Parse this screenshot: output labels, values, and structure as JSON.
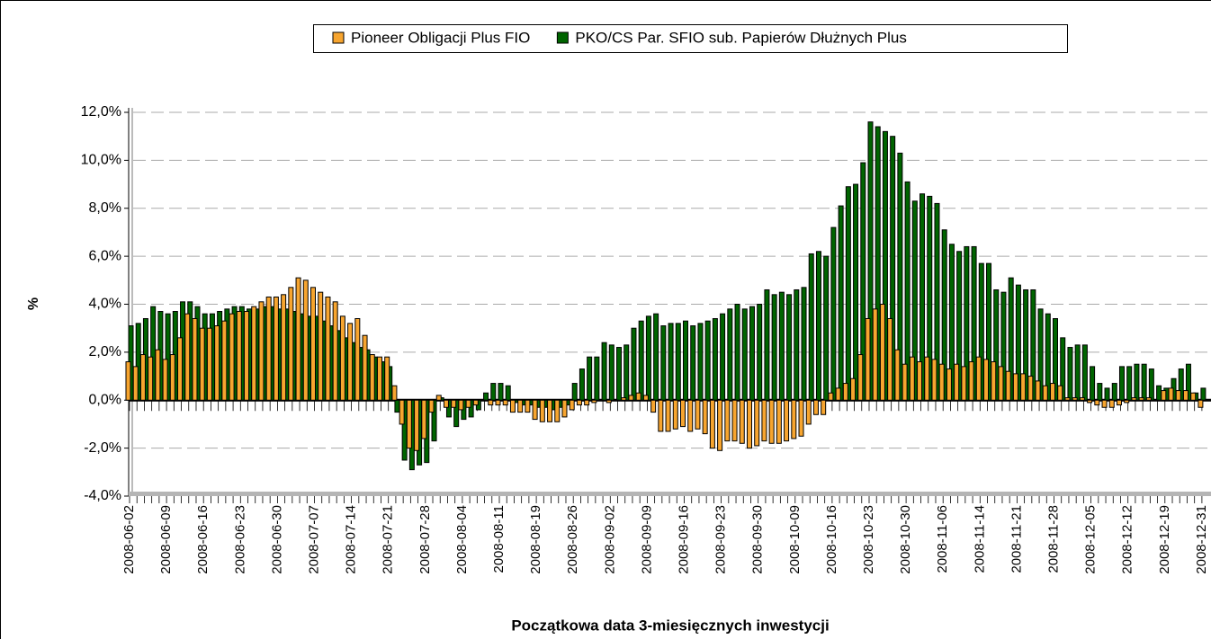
{
  "chart_data": {
    "type": "bar",
    "y_label": "%",
    "x_label": "Początkowa data 3-miesięcznych inwestycji",
    "ylim": [
      -4,
      12
    ],
    "yticks": [
      {
        "value": -4,
        "label": "-4,0%"
      },
      {
        "value": -2,
        "label": "-2,0%"
      },
      {
        "value": 0,
        "label": "0,0%"
      },
      {
        "value": 2,
        "label": "2,0%"
      },
      {
        "value": 4,
        "label": "4,0%"
      },
      {
        "value": 6,
        "label": "6,0%"
      },
      {
        "value": 8,
        "label": "8,0%"
      },
      {
        "value": 10,
        "label": "10,0%"
      },
      {
        "value": 12,
        "label": "12,0%"
      }
    ],
    "grid": true,
    "legend": "top",
    "categories": [
      "2008-06-02",
      null,
      null,
      null,
      null,
      "2008-06-09",
      null,
      null,
      null,
      null,
      "2008-06-16",
      null,
      null,
      null,
      null,
      "2008-06-23",
      null,
      null,
      null,
      null,
      "2008-06-30",
      null,
      null,
      null,
      null,
      "2008-07-07",
      null,
      null,
      null,
      null,
      "2008-07-14",
      null,
      null,
      null,
      null,
      "2008-07-21",
      null,
      null,
      null,
      null,
      "2008-07-28",
      null,
      null,
      null,
      null,
      "2008-08-04",
      null,
      null,
      null,
      null,
      "2008-08-11",
      null,
      null,
      null,
      null,
      "2008-08-19",
      null,
      null,
      null,
      null,
      "2008-08-26",
      null,
      null,
      null,
      null,
      "2008-09-02",
      null,
      null,
      null,
      null,
      "2008-09-09",
      null,
      null,
      null,
      null,
      "2008-09-16",
      null,
      null,
      null,
      null,
      "2008-09-23",
      null,
      null,
      null,
      null,
      "2008-09-30",
      null,
      null,
      null,
      null,
      "2008-10-09",
      null,
      null,
      null,
      null,
      "2008-10-16",
      null,
      null,
      null,
      null,
      "2008-10-23",
      null,
      null,
      null,
      null,
      "2008-10-30",
      null,
      null,
      null,
      null,
      "2008-11-06",
      null,
      null,
      null,
      null,
      "2008-11-14",
      null,
      null,
      null,
      null,
      "2008-11-21",
      null,
      null,
      null,
      null,
      "2008-11-28",
      null,
      null,
      null,
      null,
      "2008-12-05",
      null,
      null,
      null,
      null,
      "2008-12-12",
      null,
      null,
      null,
      null,
      "2008-12-19",
      null,
      null,
      null,
      null,
      "2008-12-31"
    ],
    "series": [
      {
        "name": "Pioneer Obligacji Plus FIO",
        "color": "#f7a52f",
        "values": [
          1.6,
          1.4,
          1.9,
          1.8,
          2.1,
          1.7,
          1.9,
          2.6,
          3.6,
          3.4,
          3.0,
          3.0,
          3.1,
          3.3,
          3.6,
          3.7,
          3.7,
          3.9,
          4.1,
          4.3,
          4.3,
          4.4,
          4.7,
          5.1,
          5.0,
          4.7,
          4.5,
          4.3,
          4.1,
          3.5,
          3.2,
          3.4,
          2.7,
          1.9,
          1.8,
          1.8,
          0.6,
          -1.0,
          -2.0,
          -2.1,
          -1.6,
          -0.5,
          0.2,
          -0.3,
          -0.3,
          -0.4,
          -0.3,
          -0.2,
          0.0,
          -0.2,
          -0.2,
          -0.2,
          -0.5,
          -0.5,
          -0.5,
          -0.8,
          -0.9,
          -0.9,
          -0.9,
          -0.7,
          -0.4,
          -0.2,
          -0.2,
          -0.1,
          0.0,
          -0.1,
          0.0,
          0.1,
          0.2,
          0.3,
          0.2,
          -0.5,
          -1.3,
          -1.3,
          -1.2,
          -1.1,
          -1.3,
          -1.2,
          -1.4,
          -2.0,
          -2.1,
          -1.7,
          -1.7,
          -1.8,
          -2.0,
          -1.9,
          -1.7,
          -1.8,
          -1.8,
          -1.7,
          -1.6,
          -1.5,
          -1.0,
          -0.6,
          -0.6,
          0.3,
          0.5,
          0.7,
          0.9,
          1.9,
          3.4,
          3.8,
          4.0,
          3.4,
          2.1,
          1.5,
          1.8,
          1.6,
          1.8,
          1.7,
          1.5,
          1.3,
          1.5,
          1.4,
          1.6,
          1.8,
          1.7,
          1.6,
          1.4,
          1.2,
          1.1,
          1.1,
          1.0,
          0.8,
          0.6,
          0.7,
          0.6,
          0.1,
          0.1,
          0.1,
          -0.1,
          -0.2,
          -0.3,
          -0.3,
          -0.2,
          -0.1,
          0.1,
          0.1,
          0.1,
          0.0,
          0.4,
          0.5,
          0.4,
          0.4,
          0.3,
          -0.3
        ]
      },
      {
        "name": "PKO/CS Par. SFIO sub. Papierów Dłużnych Plus",
        "color": "#006400",
        "values": [
          3.1,
          3.2,
          3.4,
          3.9,
          3.7,
          3.6,
          3.7,
          4.1,
          4.1,
          3.9,
          3.6,
          3.6,
          3.7,
          3.8,
          3.9,
          3.9,
          3.8,
          3.8,
          3.9,
          3.9,
          3.8,
          3.8,
          3.7,
          3.6,
          3.5,
          3.5,
          3.3,
          3.1,
          2.9,
          2.6,
          2.4,
          2.2,
          2.1,
          1.8,
          1.6,
          1.4,
          -0.5,
          -2.5,
          -2.9,
          -2.7,
          -2.6,
          -1.7,
          0.1,
          -0.7,
          -1.1,
          -0.8,
          -0.7,
          -0.4,
          0.3,
          0.7,
          0.7,
          0.6,
          -0.1,
          -0.2,
          -0.2,
          -0.3,
          -0.3,
          -0.4,
          -0.3,
          -0.2,
          0.7,
          1.3,
          1.8,
          1.8,
          2.4,
          2.3,
          2.2,
          2.3,
          3.0,
          3.3,
          3.5,
          3.6,
          3.1,
          3.2,
          3.2,
          3.3,
          3.1,
          3.2,
          3.3,
          3.4,
          3.6,
          3.8,
          4.0,
          3.8,
          3.9,
          4.0,
          4.6,
          4.4,
          4.5,
          4.4,
          4.6,
          4.7,
          6.1,
          6.2,
          6.0,
          7.2,
          8.1,
          8.9,
          9.0,
          9.9,
          11.6,
          11.4,
          11.2,
          11.0,
          10.3,
          9.1,
          8.3,
          8.6,
          8.5,
          8.2,
          7.1,
          6.5,
          6.2,
          6.4,
          6.4,
          5.7,
          5.7,
          4.6,
          4.5,
          5.1,
          4.8,
          4.6,
          4.6,
          3.8,
          3.6,
          3.4,
          2.6,
          2.2,
          2.3,
          2.3,
          1.4,
          0.7,
          0.5,
          0.7,
          1.4,
          1.4,
          1.5,
          1.5,
          1.3,
          0.6,
          0.5,
          0.9,
          1.3,
          1.5,
          0.3,
          0.5
        ]
      }
    ]
  }
}
